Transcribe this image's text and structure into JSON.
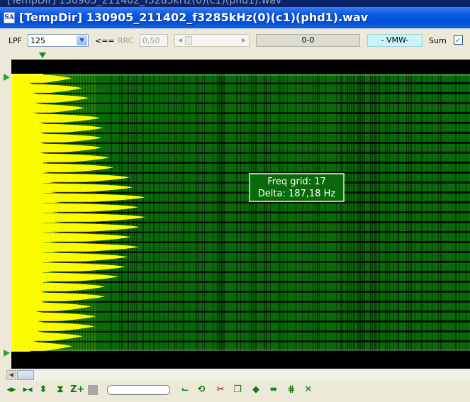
{
  "window": {
    "behind_title": "[TempDir] 130905_211402_f3285kHz(0)(c1)(phd1).wav",
    "title": "[TempDir] 130905_211402_f3285kHz(0)(c1)(phd1).wav",
    "app_icon_text": "SA"
  },
  "toolbar": {
    "lpf_label": "LPF",
    "lpf_value": "125",
    "arrow_label": "<==",
    "rrc_label": "RRC",
    "rrc_value": "0,50",
    "range_value": "0-0",
    "mode_value": "- VMW-",
    "sum_label": "Sum",
    "sum_checked": true
  },
  "overlay": {
    "line1": "Freq grid: 17",
    "line2": "Delta: 187,18 Hz"
  },
  "bottom_tools": [
    "step-left-right-icon",
    "step-right-left-icon",
    "zoom-vertical-icon",
    "compress-vertical-icon",
    "zoom-plus-icon",
    "stop-icon",
    "bracket-icon",
    "refresh-icon",
    "clipboard-cut-icon",
    "copy-icon",
    "diamond-icon",
    "shrink-icon",
    "grid-icon",
    "close-cross-icon"
  ],
  "colors": {
    "title_bar": "#0054e3",
    "plot_background": "#000000",
    "signal_primary": "#ffff00",
    "signal_secondary": "#0a6a0a",
    "overlay_bg": "#0a6a0a",
    "mode_box_bg": "#c8f4f8"
  }
}
